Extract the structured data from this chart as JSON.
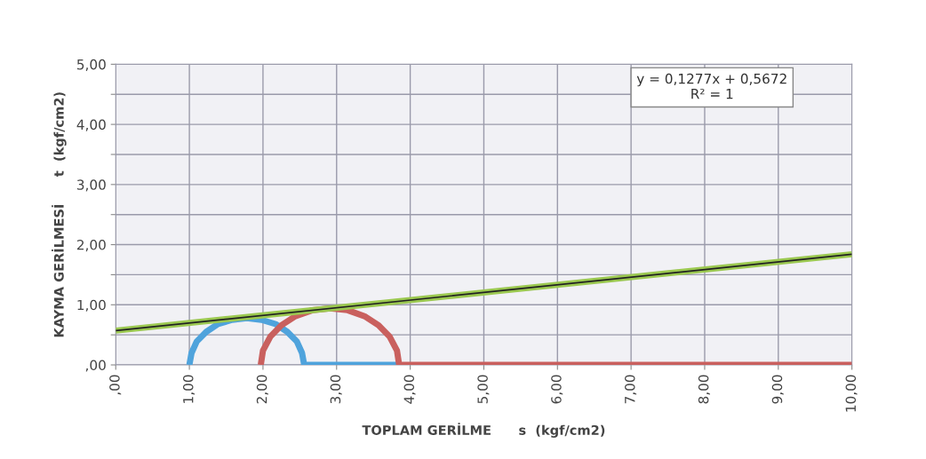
{
  "chart_data": {
    "type": "line",
    "xlabel": "TOPLAM GERİLME      s  (kgf/cm2)",
    "ylabel": "KAYMA GERİLMESİ      t  (kgf/cm2)",
    "xlim": [
      0,
      10
    ],
    "ylim": [
      0,
      5
    ],
    "xticks": [
      {
        "value": 0,
        "label": ",00"
      },
      {
        "value": 1,
        "label": "1,00"
      },
      {
        "value": 2,
        "label": "2,00"
      },
      {
        "value": 3,
        "label": "3,00"
      },
      {
        "value": 4,
        "label": "4,00"
      },
      {
        "value": 5,
        "label": "5,00"
      },
      {
        "value": 6,
        "label": "6,00"
      },
      {
        "value": 7,
        "label": "7,00"
      },
      {
        "value": 8,
        "label": "8,00"
      },
      {
        "value": 9,
        "label": "9,00"
      },
      {
        "value": 10,
        "label": "10,00"
      }
    ],
    "yticks": [
      {
        "value": 0,
        "label": ",00"
      },
      {
        "value": 0.5,
        "label": null
      },
      {
        "value": 1,
        "label": "1,00"
      },
      {
        "value": 1.5,
        "label": null
      },
      {
        "value": 2,
        "label": "2,00"
      },
      {
        "value": 2.5,
        "label": null
      },
      {
        "value": 3,
        "label": "3,00"
      },
      {
        "value": 3.5,
        "label": null
      },
      {
        "value": 4,
        "label": "4,00"
      },
      {
        "value": 4.5,
        "label": null
      },
      {
        "value": 5,
        "label": "5,00"
      }
    ],
    "grid": true,
    "marker": "none",
    "line_style": "solid",
    "series": [
      {
        "color": "#4fa3dc",
        "x": [
          1.0,
          1.03,
          1.1,
          1.23,
          1.39,
          1.58,
          1.78,
          1.98,
          2.17,
          2.33,
          2.46,
          2.53,
          2.56,
          3.85
        ],
        "values": [
          0,
          0.2,
          0.39,
          0.55,
          0.68,
          0.75,
          0.78,
          0.75,
          0.68,
          0.55,
          0.39,
          0.2,
          0,
          0
        ]
      },
      {
        "color": "#c9605e",
        "x": [
          1.97,
          2.0,
          2.1,
          2.25,
          2.44,
          2.67,
          2.91,
          3.15,
          3.38,
          3.57,
          3.72,
          3.82,
          3.85,
          10
        ],
        "values": [
          0,
          0.24,
          0.47,
          0.66,
          0.81,
          0.91,
          0.94,
          0.91,
          0.81,
          0.66,
          0.47,
          0.24,
          0,
          0
        ]
      },
      {
        "color": "#9bc850",
        "x": [
          0,
          10
        ],
        "values": [
          0.57,
          1.84
        ]
      },
      {
        "color": "#222222",
        "x": [
          0,
          10
        ],
        "values": [
          0.57,
          1.84
        ]
      }
    ],
    "annotations": [
      "y = 0,1277x + 0,5672",
      "R² = 1"
    ]
  }
}
